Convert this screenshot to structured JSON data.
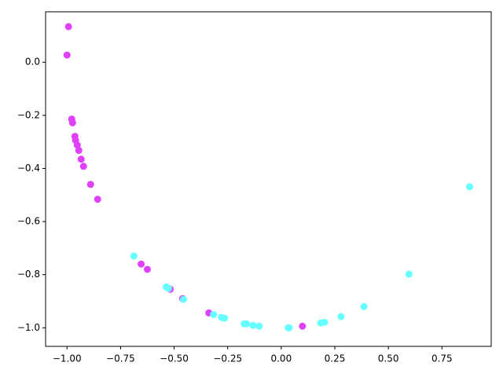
{
  "chart_data": {
    "type": "scatter",
    "xlim": [
      -1.1,
      0.98
    ],
    "ylim": [
      -1.07,
      0.19
    ],
    "xticks": [
      {
        "value": -1.0,
        "label": "−1.00"
      },
      {
        "value": -0.75,
        "label": "−0.75"
      },
      {
        "value": -0.5,
        "label": "−0.50"
      },
      {
        "value": -0.25,
        "label": "−0.25"
      },
      {
        "value": 0,
        "label": "0.00"
      },
      {
        "value": 0.25,
        "label": "0.25"
      },
      {
        "value": 0.5,
        "label": "0.50"
      },
      {
        "value": 0.75,
        "label": "0.75"
      }
    ],
    "yticks": [
      {
        "value": 0,
        "label": "0.0"
      },
      {
        "value": -0.2,
        "label": "−0.2"
      },
      {
        "value": -0.4,
        "label": "−0.4"
      },
      {
        "value": -0.6,
        "label": "−0.6"
      },
      {
        "value": -0.8,
        "label": "−0.8"
      },
      {
        "value": -1.0,
        "label": "−1.0"
      }
    ],
    "series": [
      {
        "color": "#e040fb",
        "x": [
          -0.993,
          -1.0,
          -0.978,
          -0.974,
          -0.963,
          -0.96,
          -0.952,
          -0.945,
          -0.934,
          -0.923,
          -0.89,
          -0.857,
          -0.654,
          -0.625,
          -0.518,
          -0.46,
          -0.338,
          0.099
        ],
        "y": [
          0.134,
          0.027,
          -0.214,
          -0.228,
          -0.279,
          -0.294,
          -0.312,
          -0.332,
          -0.365,
          -0.392,
          -0.46,
          -0.516,
          -0.76,
          -0.78,
          -0.855,
          -0.89,
          -0.944,
          -0.994
        ]
      },
      {
        "color": "#66ffff",
        "x": [
          -0.688,
          -0.537,
          -0.526,
          -0.456,
          -0.316,
          -0.279,
          -0.265,
          -0.173,
          -0.162,
          -0.132,
          -0.103,
          0.033,
          0.037,
          0.184,
          0.202,
          0.279,
          0.386,
          0.596,
          0.879
        ],
        "y": [
          -0.73,
          -0.846,
          -0.852,
          -0.893,
          -0.95,
          -0.961,
          -0.964,
          -0.985,
          -0.985,
          -0.991,
          -0.994,
          -1.0,
          -1.0,
          -0.982,
          -0.979,
          -0.958,
          -0.92,
          -0.798,
          -0.469
        ]
      }
    ]
  }
}
